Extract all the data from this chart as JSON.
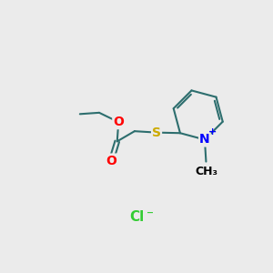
{
  "bg_color": "#ebebeb",
  "atom_colors": {
    "C": "#2d6e6e",
    "O": "#ff0000",
    "N": "#0000ff",
    "S": "#ccaa00",
    "Cl": "#33cc33"
  },
  "bond_color": "#2d6e6e",
  "bond_width": 1.5,
  "font_size": 10,
  "small_font_size": 9
}
